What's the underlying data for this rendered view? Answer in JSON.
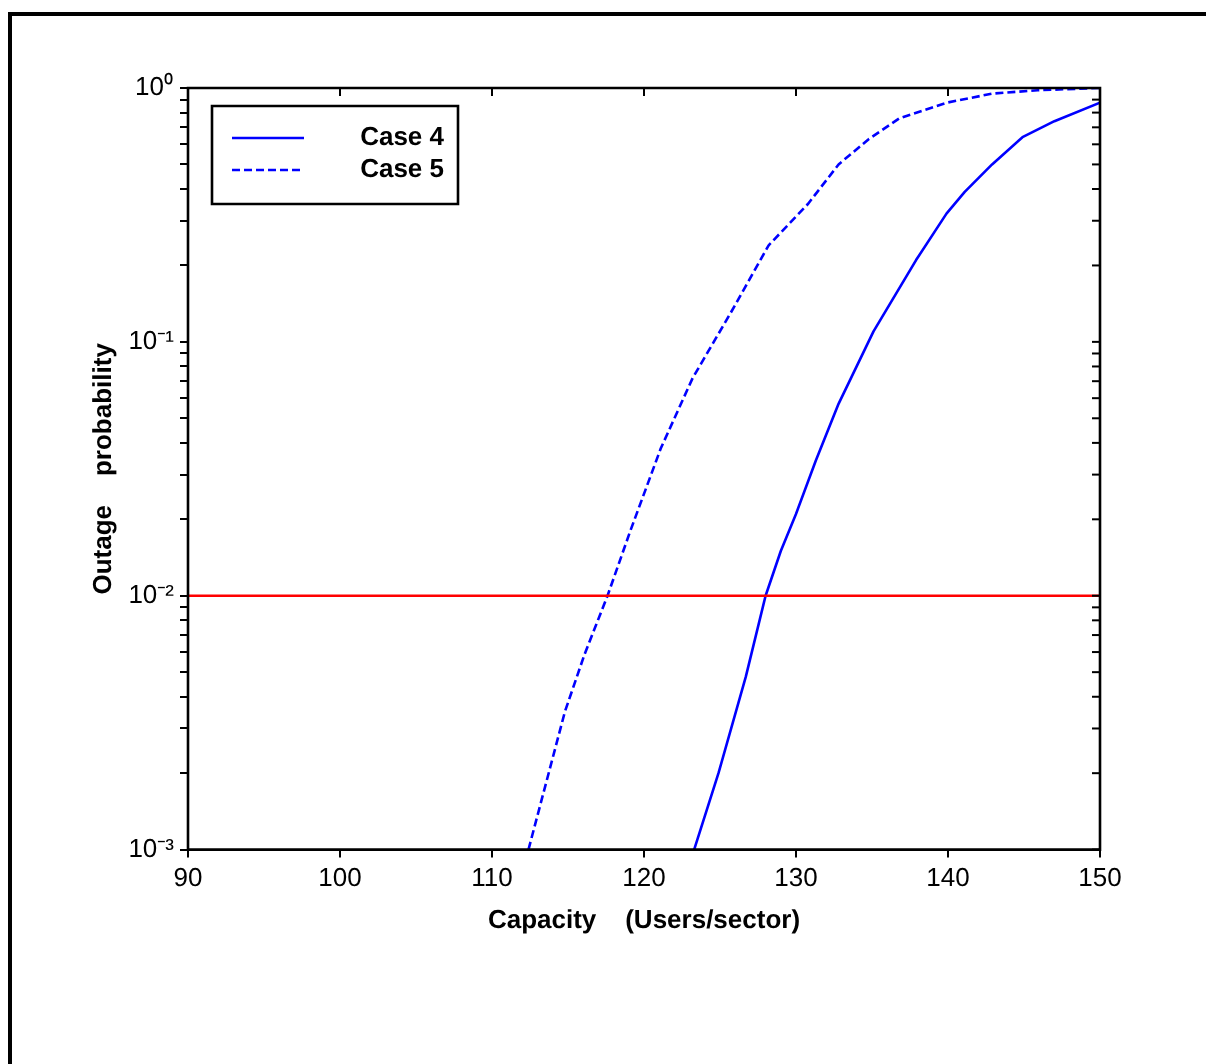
{
  "chart_data": {
    "type": "line",
    "xlabel": "Capacity    (Users/sector)",
    "ylabel": "Outage    probability",
    "log": "y",
    "grid": false,
    "legend": "top left",
    "marker": "none",
    "xlim": [
      90,
      150
    ],
    "xticks": [
      90,
      100,
      110,
      120,
      130,
      140,
      150
    ],
    "ylim": [
      0.001,
      1
    ],
    "yticks": [
      {
        "value": 0.001,
        "label": "10⁻³"
      },
      {
        "value": 0.002,
        "label": null
      },
      {
        "value": 0.003,
        "label": null
      },
      {
        "value": 0.004,
        "label": null
      },
      {
        "value": 0.005,
        "label": null
      },
      {
        "value": 0.006,
        "label": null
      },
      {
        "value": 0.007,
        "label": null
      },
      {
        "value": 0.008,
        "label": null
      },
      {
        "value": 0.009,
        "label": null
      },
      {
        "value": 0.01,
        "label": "10⁻²"
      },
      {
        "value": 0.02,
        "label": null
      },
      {
        "value": 0.03,
        "label": null
      },
      {
        "value": 0.04,
        "label": null
      },
      {
        "value": 0.05,
        "label": null
      },
      {
        "value": 0.06,
        "label": null
      },
      {
        "value": 0.07,
        "label": null
      },
      {
        "value": 0.08,
        "label": null
      },
      {
        "value": 0.09,
        "label": null
      },
      {
        "value": 0.1,
        "label": "10⁻¹"
      },
      {
        "value": 0.2,
        "label": null
      },
      {
        "value": 0.3,
        "label": null
      },
      {
        "value": 0.4,
        "label": null
      },
      {
        "value": 0.5,
        "label": null
      },
      {
        "value": 0.6,
        "label": null
      },
      {
        "value": 0.7,
        "label": null
      },
      {
        "value": 0.8,
        "label": null
      },
      {
        "value": 0.9,
        "label": null
      },
      {
        "value": 1,
        "label": "10⁰"
      }
    ],
    "series": [
      {
        "name": "Case 4",
        "color": "#0000ff",
        "line_style": "solid",
        "x": [
          123.3,
          124.9,
          126.7,
          128.0,
          129.0,
          130.0,
          131.3,
          132.8,
          135.1,
          137.9,
          139.9,
          141.1,
          142.9,
          144.9,
          147.0,
          150
        ],
        "values": [
          0.001,
          0.002,
          0.0048,
          0.01,
          0.015,
          0.021,
          0.034,
          0.057,
          0.11,
          0.21,
          0.32,
          0.39,
          0.5,
          0.64,
          0.74,
          0.875
        ]
      },
      {
        "name": "Case 5",
        "color": "#0000ff",
        "line_style": "dashed",
        "x": [
          112.4,
          114.8,
          116.1,
          117.6,
          119.1,
          121.1,
          123.2,
          125.7,
          128.2,
          130.8,
          132.8,
          134.8,
          136.8,
          139.9,
          142.9,
          145.9,
          150
        ],
        "values": [
          0.001,
          0.0035,
          0.0059,
          0.01,
          0.018,
          0.038,
          0.072,
          0.13,
          0.24,
          0.35,
          0.5,
          0.63,
          0.76,
          0.875,
          0.95,
          0.98,
          1
        ]
      }
    ],
    "ref_lines": [
      {
        "axis": "y",
        "value": 0.01,
        "color": "#ff0000"
      }
    ]
  }
}
